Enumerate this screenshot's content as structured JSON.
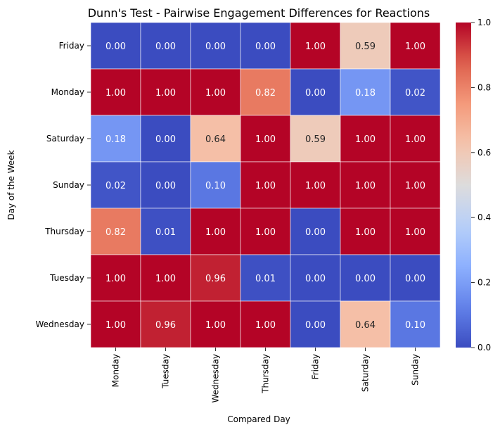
{
  "chart_data": {
    "type": "heatmap",
    "title": "Dunn's Test - Pairwise Engagement Differences for Reactions",
    "xlabel": "Compared Day",
    "ylabel": "Day of the Week",
    "x_categories": [
      "Monday",
      "Tuesday",
      "Wednesday",
      "Thursday",
      "Friday",
      "Saturday",
      "Sunday"
    ],
    "y_categories": [
      "Friday",
      "Monday",
      "Saturday",
      "Sunday",
      "Thursday",
      "Tuesday",
      "Wednesday"
    ],
    "values": [
      [
        0.0,
        0.0,
        0.0,
        0.0,
        1.0,
        0.59,
        1.0
      ],
      [
        1.0,
        1.0,
        1.0,
        0.82,
        0.0,
        0.18,
        0.02
      ],
      [
        0.18,
        0.0,
        0.64,
        1.0,
        0.59,
        1.0,
        1.0
      ],
      [
        0.02,
        0.0,
        0.1,
        1.0,
        1.0,
        1.0,
        1.0
      ],
      [
        0.82,
        0.01,
        1.0,
        1.0,
        0.0,
        1.0,
        1.0
      ],
      [
        1.0,
        1.0,
        0.96,
        0.01,
        0.0,
        0.0,
        0.0
      ],
      [
        1.0,
        0.96,
        1.0,
        1.0,
        0.0,
        0.64,
        0.1
      ]
    ],
    "value_format": "0.00",
    "colormap": "coolwarm",
    "vmin": 0,
    "vmax": 1,
    "colorbar_ticks": [
      "0.0",
      "0.2",
      "0.4",
      "0.6",
      "0.8",
      "1.0"
    ],
    "cell_border_color": "#ffffff"
  }
}
